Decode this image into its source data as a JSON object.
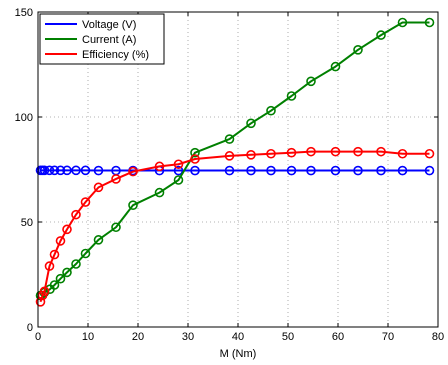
{
  "chart_data": {
    "type": "line",
    "xlabel": "M (Nm)",
    "ylabel": "",
    "xlim": [
      0,
      80
    ],
    "ylim": [
      0,
      150
    ],
    "xticks": [
      0,
      10,
      20,
      30,
      40,
      50,
      60,
      70,
      80
    ],
    "yticks": [
      0,
      50,
      100,
      150
    ],
    "grid": true,
    "legend_position": "top-left",
    "series": [
      {
        "name": "Voltage (V)",
        "color": "#0000ff",
        "x": [
          0.5,
          0.9,
          1.3,
          2.3,
          3.3,
          4.5,
          5.8,
          7.6,
          9.5,
          12.1,
          15.6,
          19.0,
          24.3,
          28.1,
          31.4,
          38.3,
          42.6,
          46.6,
          50.7,
          54.6,
          59.5,
          64.0,
          68.6,
          72.9,
          78.3
        ],
        "y": [
          74.6,
          74.6,
          74.6,
          74.6,
          74.6,
          74.6,
          74.6,
          74.6,
          74.6,
          74.5,
          74.5,
          74.5,
          74.5,
          74.5,
          74.5,
          74.5,
          74.5,
          74.5,
          74.5,
          74.5,
          74.5,
          74.5,
          74.5,
          74.5,
          74.5
        ]
      },
      {
        "name": "Current (A)",
        "color": "#008000",
        "x": [
          0.5,
          1.3,
          2.4,
          3.3,
          4.5,
          5.8,
          7.6,
          9.5,
          12.1,
          15.6,
          19.0,
          24.3,
          28.1,
          31.4,
          38.3,
          42.6,
          46.6,
          50.7,
          54.6,
          59.5,
          64.0,
          68.6,
          72.9,
          78.3
        ],
        "y": [
          15.0,
          16.5,
          18.0,
          20.0,
          23.0,
          26.0,
          30.0,
          35.0,
          41.5,
          47.5,
          58.0,
          64.0,
          70.0,
          83.0,
          89.5,
          97.0,
          103.0,
          110.0,
          117.0,
          124.0,
          132.0,
          139.0,
          145.0,
          145.0
        ]
      },
      {
        "name": "Efficiency (%)",
        "color": "#ff0000",
        "x": [
          0.5,
          0.9,
          1.3,
          2.3,
          3.3,
          4.5,
          5.8,
          7.6,
          9.5,
          12.1,
          15.6,
          19.0,
          24.3,
          28.1,
          31.4,
          38.3,
          42.6,
          46.6,
          50.7,
          54.6,
          59.5,
          64.0,
          68.6,
          72.9,
          78.3
        ],
        "y": [
          12.0,
          15.0,
          17.0,
          29.0,
          34.5,
          41.0,
          46.5,
          53.5,
          59.5,
          66.5,
          70.5,
          74.0,
          76.5,
          77.5,
          80.0,
          81.5,
          82.0,
          82.5,
          83.0,
          83.5,
          83.5,
          83.5,
          83.5,
          82.5,
          82.5
        ]
      }
    ]
  }
}
